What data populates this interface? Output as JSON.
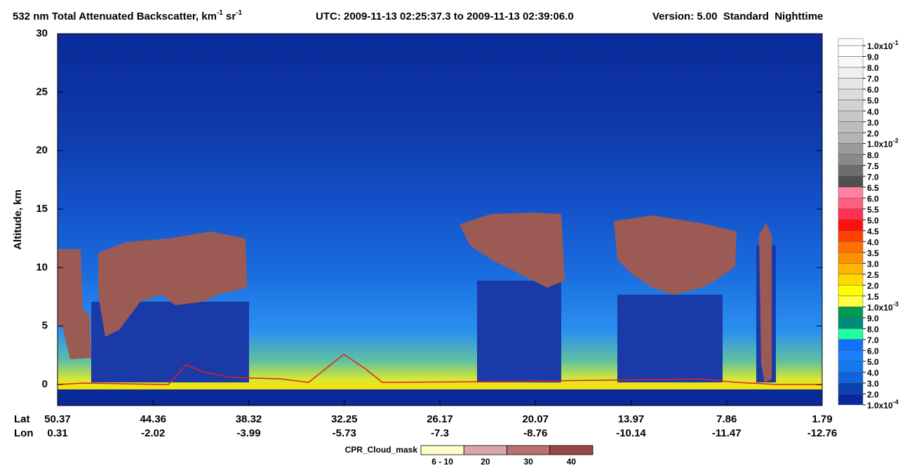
{
  "chart_data": {
    "type": "curtain",
    "title": {
      "quantity": "532 nm Total Attenuated Backscatter, km",
      "unit1_sup": "-1",
      "unit2": " sr",
      "unit2_sup": "-1",
      "utc": "UTC:  2009-11-13 02:25:37.3  to  2009-11-13 02:39:06.0",
      "version": "Version: 5.00  Standard  Nighttime"
    },
    "ylabel": "Altitude, km",
    "ylim": [
      -1.8,
      30
    ],
    "yticks": [
      0,
      5,
      10,
      15,
      20,
      25,
      30
    ],
    "x_row_labels": {
      "lat": "Lat",
      "lon": "Lon"
    },
    "xticks": [
      {
        "lat": 50.37,
        "lon": 0.31
      },
      {
        "lat": 44.36,
        "lon": -2.02
      },
      {
        "lat": 38.32,
        "lon": -3.99
      },
      {
        "lat": 32.25,
        "lon": -5.73
      },
      {
        "lat": 26.17,
        "lon": -7.3
      },
      {
        "lat": 20.07,
        "lon": -8.76
      },
      {
        "lat": 13.97,
        "lon": -10.14
      },
      {
        "lat": 7.86,
        "lon": -11.47
      },
      {
        "lat": 1.79,
        "lon": -12.76
      }
    ],
    "colorbar": {
      "labels": [
        {
          "text": "1.0x10",
          "sup": "-1"
        },
        "9.0",
        "8.0",
        "7.0",
        "6.0",
        "5.0",
        "4.0",
        "3.0",
        "2.0",
        {
          "text": "1.0x10",
          "sup": "-2"
        },
        "8.0",
        "7.5",
        "7.0",
        "6.5",
        "6.0",
        "5.5",
        "5.0",
        "4.5",
        "4.0",
        "3.5",
        "3.0",
        "2.5",
        "2.0",
        "1.5",
        {
          "text": "1.0x10",
          "sup": "-3"
        },
        "9.0",
        "8.0",
        "7.0",
        "6.0",
        "5.0",
        "4.0",
        "3.0",
        "2.0",
        {
          "text": "1.0x10",
          "sup": "-4"
        }
      ],
      "colors": [
        "#ffffff",
        "#f8f8f8",
        "#f0f0f0",
        "#e6e6e6",
        "#dcdcdc",
        "#d2d2d2",
        "#c8c8c8",
        "#bebebe",
        "#b4b4b4",
        "#9b9b9b",
        "#8a8a8a",
        "#6e6e6e",
        "#505050",
        "#ff80a0",
        "#ff6080",
        "#ff3050",
        "#ff1010",
        "#ff4000",
        "#ff7000",
        "#ff9000",
        "#ffb400",
        "#ffd800",
        "#ffff00",
        "#ffff40",
        "#009a50",
        "#008c7c",
        "#20ffa0",
        "#1070ff",
        "#1a80ff",
        "#1478f0",
        "#1064e0",
        "#0a40b0",
        "#0828a0"
      ]
    },
    "cloud_mask": {
      "title": "CPR_Cloud_mask",
      "labels": [
        "6 - 10",
        "20",
        "30",
        "40"
      ],
      "colors": [
        "#ffffc8",
        "#d8a8a8",
        "#b87070",
        "#984848"
      ]
    }
  }
}
